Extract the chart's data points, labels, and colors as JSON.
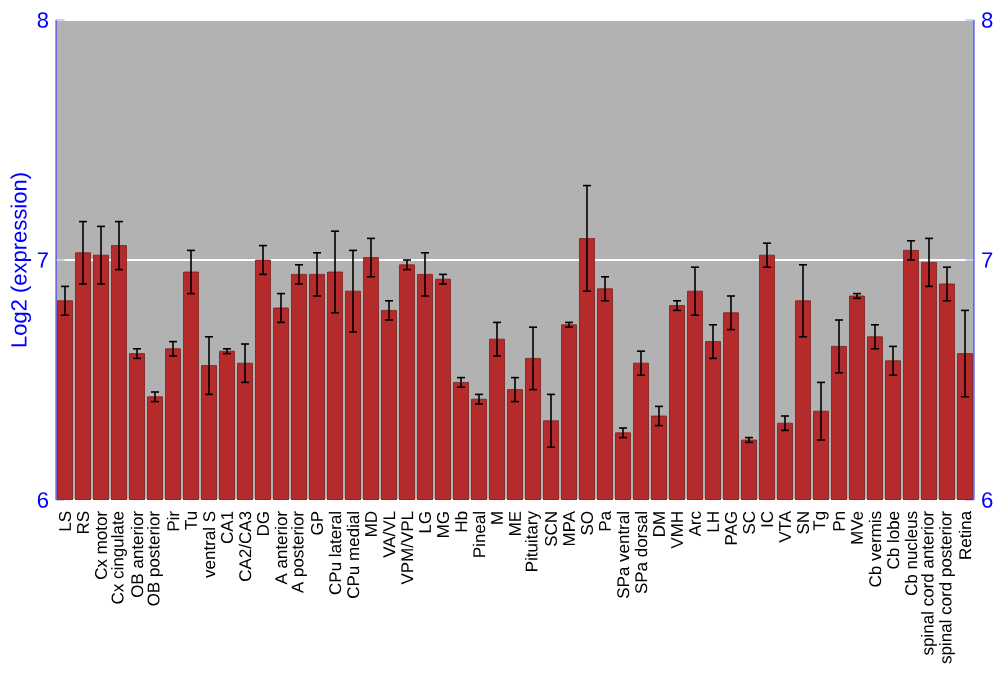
{
  "chart_data": {
    "type": "bar",
    "ylabel": "Log2 (expression)",
    "categories": [
      "LS",
      "RS",
      "Cx motor",
      "Cx cingulate",
      "OB anterior",
      "OB posterior",
      "Pir",
      "Tu",
      "ventral S",
      "CA1",
      "CA2/CA3",
      "DG",
      "A anterior",
      "A posterior",
      "GP",
      "CPu lateral",
      "CPu medial",
      "MD",
      "VA/VL",
      "VPM/VPL",
      "LG",
      "MG",
      "Hb",
      "Pineal",
      "M",
      "ME",
      "Pituitary",
      "SCN",
      "MPA",
      "SO",
      "Pa",
      "SPa ventral",
      "SPa dorsal",
      "DM",
      "VMH",
      "Arc",
      "LH",
      "PAG",
      "SC",
      "IC",
      "VTA",
      "SN",
      "Tg",
      "Pn",
      "MVe",
      "Cb vermis",
      "Cb lobe",
      "Cb nucleus",
      "spinal cord anterior",
      "spinal cord posterior",
      "Retina"
    ],
    "values": [
      6.83,
      7.03,
      7.02,
      7.06,
      6.61,
      6.43,
      6.63,
      6.95,
      6.56,
      6.62,
      6.57,
      7.0,
      6.8,
      6.94,
      6.94,
      6.95,
      6.87,
      7.01,
      6.79,
      6.98,
      6.94,
      6.92,
      6.49,
      6.42,
      6.67,
      6.46,
      6.59,
      6.33,
      6.73,
      7.09,
      6.88,
      6.28,
      6.57,
      6.35,
      6.81,
      6.87,
      6.66,
      6.78,
      6.25,
      7.02,
      6.32,
      6.83,
      6.37,
      6.64,
      6.85,
      6.68,
      6.58,
      7.04,
      6.99,
      6.9,
      6.61
    ],
    "errors": [
      0.06,
      0.13,
      0.12,
      0.1,
      0.02,
      0.02,
      0.03,
      0.09,
      0.12,
      0.01,
      0.08,
      0.06,
      0.06,
      0.04,
      0.09,
      0.17,
      0.17,
      0.08,
      0.04,
      0.02,
      0.09,
      0.02,
      0.02,
      0.02,
      0.07,
      0.05,
      0.13,
      0.11,
      0.01,
      0.22,
      0.05,
      0.02,
      0.05,
      0.04,
      0.02,
      0.1,
      0.07,
      0.07,
      0.01,
      0.05,
      0.03,
      0.15,
      0.12,
      0.11,
      0.01,
      0.05,
      0.06,
      0.04,
      0.1,
      0.07,
      0.18
    ],
    "color": "#b52a2a",
    "ylim": [
      6,
      8
    ],
    "yticks": [
      6,
      7,
      8
    ],
    "y2lim": [
      6,
      8
    ],
    "y2ticks": [
      6,
      7,
      8
    ],
    "grid": "y"
  }
}
